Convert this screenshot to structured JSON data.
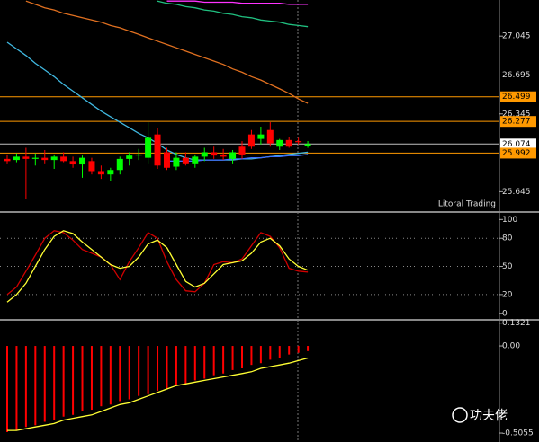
{
  "chart_data": [
    {
      "type": "candlestick",
      "ylim": [
        25.47,
        27.37
      ],
      "yticks": [
        27.045,
        26.695,
        26.345,
        25.645
      ],
      "up_color": "#00ff00",
      "down_color": "#ff0000",
      "watermark": "Litoral Trading",
      "open": [
        25.94,
        25.93,
        25.96,
        25.94,
        25.95,
        25.93,
        25.96,
        25.92,
        25.89,
        25.92,
        25.83,
        25.8,
        25.84,
        25.94,
        25.97,
        25.95,
        26.16,
        26.0,
        25.87,
        25.95,
        25.9,
        25.96,
        26.0,
        25.98,
        25.94,
        26.05,
        26.16,
        26.12,
        26.2,
        26.05,
        26.11,
        26.1,
        26.06
      ],
      "high": [
        25.98,
        25.99,
        26.04,
        25.99,
        26.02,
        25.98,
        26.0,
        25.96,
        25.97,
        25.95,
        25.88,
        25.86,
        25.96,
        26.0,
        26.03,
        26.27,
        26.22,
        26.04,
        26.0,
        26.0,
        25.98,
        26.04,
        26.05,
        26.03,
        26.02,
        26.1,
        26.2,
        26.23,
        26.27,
        26.12,
        26.14,
        26.13,
        26.1
      ],
      "low": [
        25.9,
        25.91,
        25.58,
        25.88,
        25.9,
        25.85,
        25.91,
        25.86,
        25.77,
        25.8,
        25.76,
        25.74,
        25.8,
        25.88,
        25.93,
        25.9,
        25.85,
        25.84,
        25.84,
        25.88,
        25.86,
        25.92,
        25.94,
        25.93,
        25.9,
        25.94,
        26.03,
        26.07,
        26.05,
        26.02,
        26.04,
        26.07,
        26.04
      ],
      "close": [
        25.92,
        25.96,
        25.94,
        25.95,
        25.93,
        25.96,
        25.92,
        25.89,
        25.95,
        25.83,
        25.8,
        25.84,
        25.94,
        25.97,
        25.98,
        26.13,
        25.88,
        25.86,
        25.95,
        25.9,
        25.96,
        26.0,
        25.97,
        25.96,
        26.0,
        25.98,
        26.05,
        26.16,
        26.08,
        26.11,
        26.05,
        26.09,
        26.074
      ],
      "overlays": [
        {
          "color": "#ff33ff",
          "values": [
            null,
            null,
            null,
            null,
            null,
            null,
            null,
            null,
            null,
            null,
            null,
            null,
            null,
            null,
            null,
            null,
            null,
            27.36,
            27.36,
            27.36,
            27.36,
            27.35,
            27.35,
            27.35,
            27.35,
            27.34,
            27.34,
            27.34,
            27.34,
            27.34,
            27.33,
            27.33,
            27.33
          ]
        },
        {
          "color": "#20c080",
          "values": [
            null,
            null,
            null,
            null,
            null,
            null,
            null,
            null,
            null,
            null,
            null,
            null,
            null,
            null,
            null,
            null,
            27.36,
            27.34,
            27.33,
            27.31,
            27.3,
            27.28,
            27.27,
            27.25,
            27.24,
            27.22,
            27.21,
            27.19,
            27.18,
            27.17,
            27.15,
            27.14,
            27.13
          ]
        },
        {
          "color": "#e07020",
          "values": [
            null,
            null,
            27.36,
            27.33,
            27.3,
            27.28,
            27.25,
            27.23,
            27.21,
            27.19,
            27.17,
            27.14,
            27.12,
            27.09,
            27.06,
            27.03,
            27.0,
            26.97,
            26.94,
            26.91,
            26.88,
            26.85,
            26.82,
            26.79,
            26.75,
            26.72,
            26.68,
            26.65,
            26.61,
            26.57,
            26.53,
            26.48,
            26.44
          ]
        },
        {
          "color": "#40b8e0",
          "values": [
            26.99,
            26.93,
            26.87,
            26.8,
            26.74,
            26.68,
            26.61,
            26.55,
            26.49,
            26.43,
            26.37,
            26.32,
            26.27,
            26.22,
            26.17,
            26.13,
            26.08,
            26.02,
            25.98,
            25.95,
            25.93,
            25.93,
            25.93,
            25.93,
            25.93,
            25.94,
            25.94,
            25.95,
            25.96,
            25.97,
            25.98,
            25.99,
            26.0
          ]
        },
        {
          "color": "#4070ff",
          "values": [
            null,
            null,
            null,
            null,
            null,
            null,
            null,
            null,
            null,
            null,
            null,
            null,
            null,
            null,
            null,
            null,
            null,
            25.92,
            25.92,
            25.92,
            25.92,
            25.93,
            25.93,
            25.93,
            25.94,
            25.94,
            25.95,
            25.95,
            25.96,
            25.96,
            25.97,
            25.97,
            25.98
          ]
        }
      ],
      "levels": [
        {
          "value": 26.499,
          "color": "#ff9900"
        },
        {
          "value": 26.277,
          "color": "#ff9900"
        },
        {
          "value": 26.074,
          "color": "#c0c0c0"
        },
        {
          "value": 25.992,
          "color": "#ff9900"
        }
      ]
    },
    {
      "type": "line",
      "ylim": [
        -5,
        107
      ],
      "yticks": [
        100,
        80,
        50,
        20,
        0
      ],
      "levels": [
        80,
        50,
        20
      ],
      "series": [
        {
          "color": "#d00000",
          "values": [
            20,
            28,
            45,
            62,
            80,
            88,
            86,
            78,
            68,
            64,
            60,
            52,
            36,
            55,
            70,
            86,
            80,
            55,
            36,
            24,
            23,
            32,
            52,
            55,
            54,
            58,
            72,
            86,
            82,
            70,
            48,
            45,
            44
          ]
        },
        {
          "color": "#ffff33",
          "values": [
            12,
            20,
            32,
            50,
            68,
            82,
            88,
            85,
            76,
            68,
            60,
            52,
            48,
            50,
            60,
            74,
            78,
            70,
            52,
            34,
            28,
            32,
            42,
            52,
            54,
            56,
            64,
            76,
            80,
            72,
            58,
            50,
            46
          ]
        }
      ]
    },
    {
      "type": "bar",
      "ylim": [
        -0.547,
        0.141
      ],
      "yticks": [
        0.1321,
        {
          "value": 0,
          "label": "0.00"
        },
        -0.5055
      ],
      "color": "#ff0000",
      "values": [
        -0.5,
        -0.49,
        -0.47,
        -0.46,
        -0.44,
        -0.43,
        -0.41,
        -0.4,
        -0.38,
        -0.37,
        -0.35,
        -0.34,
        -0.32,
        -0.31,
        -0.29,
        -0.28,
        -0.26,
        -0.25,
        -0.23,
        -0.22,
        -0.2,
        -0.19,
        -0.17,
        -0.16,
        -0.14,
        -0.13,
        -0.11,
        -0.1,
        -0.08,
        -0.07,
        -0.05,
        -0.04,
        -0.03
      ],
      "line": {
        "color": "#ffff33",
        "values": [
          -0.49,
          -0.49,
          -0.48,
          -0.47,
          -0.46,
          -0.45,
          -0.43,
          -0.42,
          -0.41,
          -0.4,
          -0.38,
          -0.36,
          -0.34,
          -0.33,
          -0.31,
          -0.29,
          -0.27,
          -0.25,
          -0.23,
          -0.22,
          -0.21,
          -0.2,
          -0.19,
          -0.18,
          -0.17,
          -0.16,
          -0.15,
          -0.13,
          -0.12,
          -0.11,
          -0.1,
          -0.085,
          -0.07
        ]
      }
    }
  ],
  "watermark": "功夫佬"
}
